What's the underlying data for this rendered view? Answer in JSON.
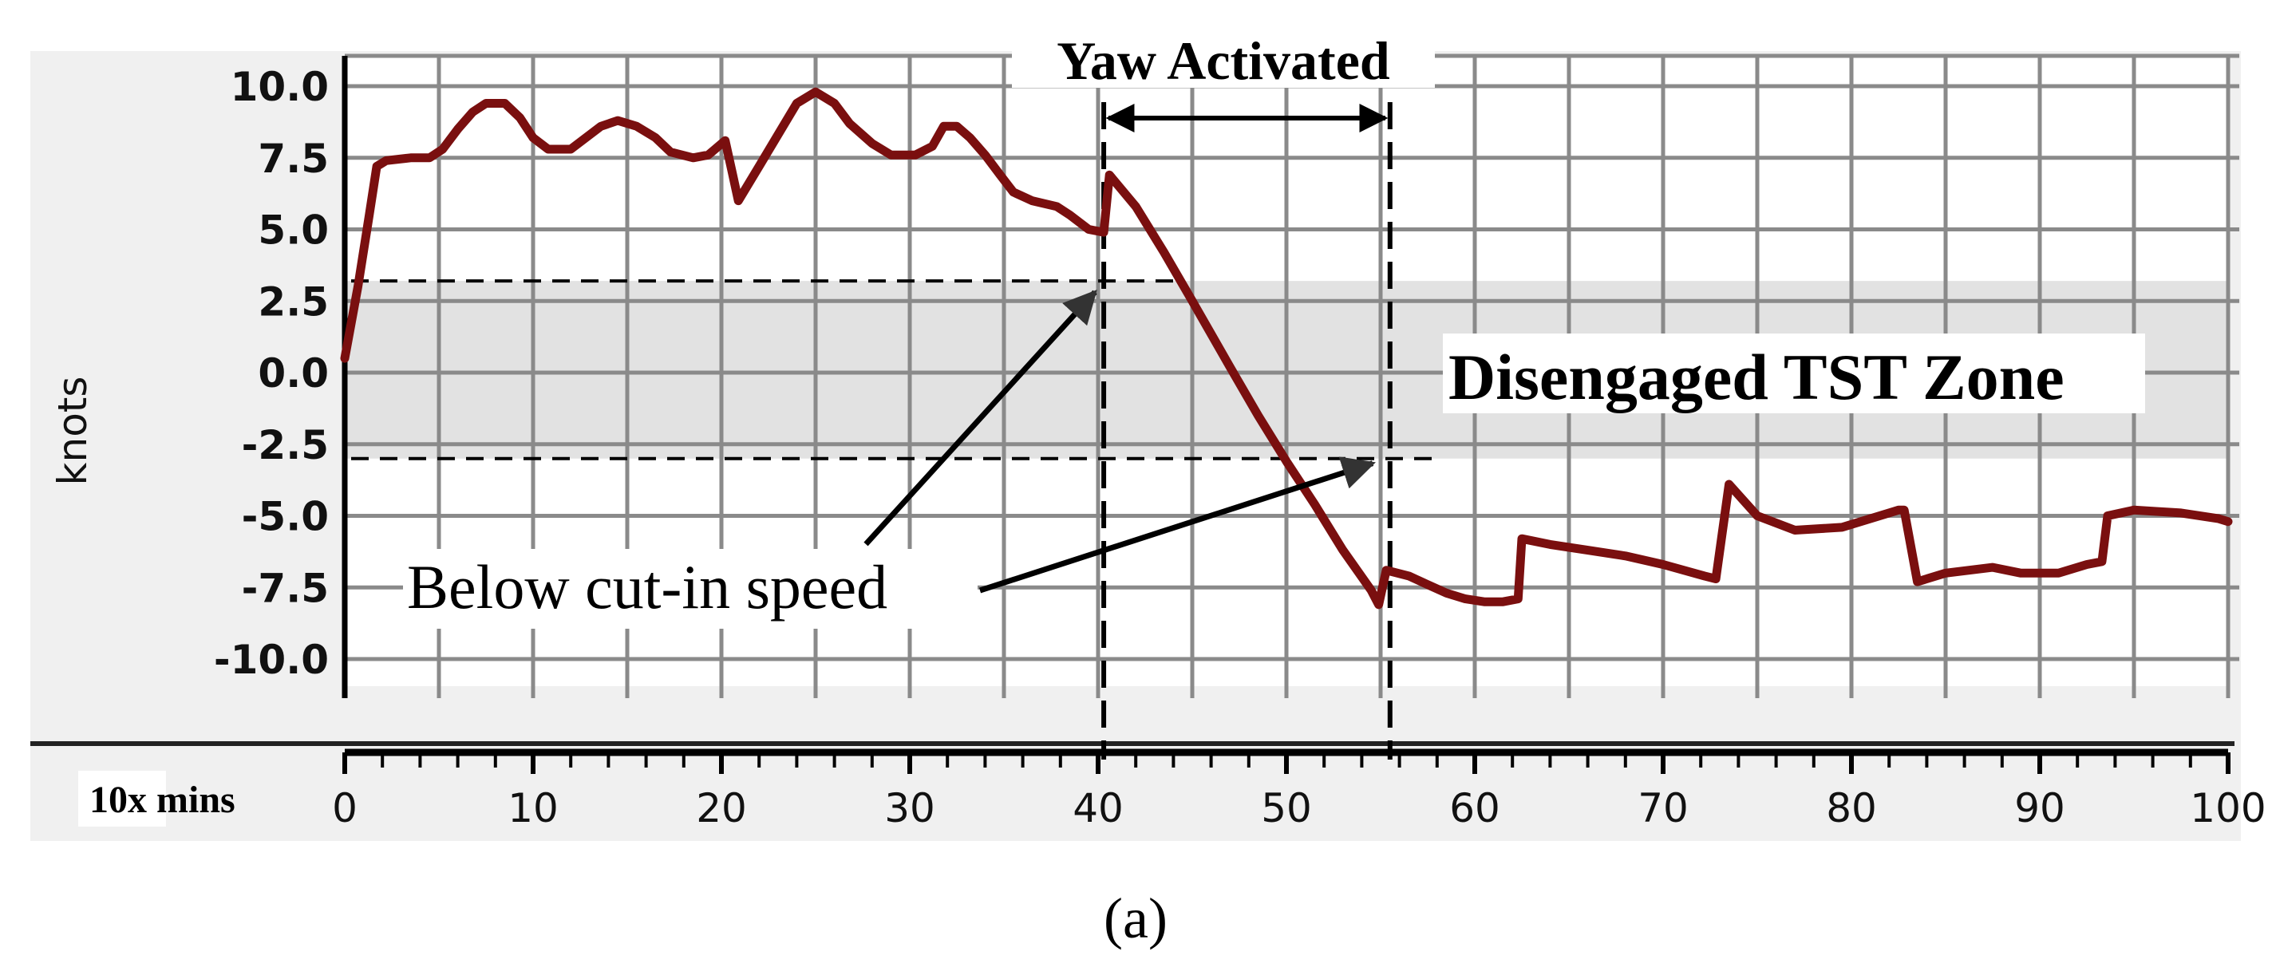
{
  "chart_data": {
    "type": "line",
    "title": "",
    "xlabel": "10x mins",
    "ylabel": "knots",
    "xlim": [
      0,
      100
    ],
    "ylim": [
      -10,
      10
    ],
    "x_ticks": [
      0,
      10,
      20,
      30,
      40,
      50,
      60,
      70,
      80,
      90,
      100
    ],
    "y_ticks": [
      "10.0",
      "7.5",
      "5.0",
      "2.5",
      "0.0",
      "-2.5",
      "-5.0",
      "-7.5",
      "-10.0"
    ],
    "y_tick_values": [
      10,
      7.5,
      5,
      2.5,
      0,
      -2.5,
      -5,
      -7.5,
      -10
    ],
    "grid": true,
    "series": [
      {
        "color": "#7a0f0f",
        "x": [
          0,
          0.7,
          1.3,
          1.7,
          2.2,
          3.5,
          4.5,
          5.2,
          6,
          6.8,
          7.5,
          8.5,
          9.3,
          10,
          10.8,
          12,
          12.8,
          13.6,
          14.5,
          15.5,
          16.5,
          17.3,
          18.5,
          19.3,
          20.2,
          20.6,
          20.9,
          22,
          23,
          24,
          25,
          26,
          26.8,
          28,
          29,
          30.3,
          31.2,
          31.8,
          32.5,
          33.2,
          34,
          34.8,
          35.5,
          36.5,
          37.8,
          38.5,
          39.5,
          40.3,
          40.6,
          42,
          43.5,
          45,
          47,
          48.5,
          50,
          51.5,
          53,
          54.5,
          54.9,
          55.3,
          56.5,
          57.5,
          58.5,
          59.5,
          60.5,
          61.5,
          62.3,
          62.5,
          64,
          66,
          68,
          70,
          72.2,
          72.8,
          73.5,
          75,
          77,
          79.5,
          81.5,
          82.5,
          82.8,
          83.5,
          85,
          87.5,
          89,
          91,
          92.5,
          93.3,
          93.6,
          95,
          97.5,
          99.5,
          100
        ],
        "y": [
          0.5,
          3.0,
          5.5,
          7.2,
          7.4,
          7.5,
          7.5,
          7.8,
          8.5,
          9.1,
          9.4,
          9.4,
          8.9,
          8.2,
          7.8,
          7.8,
          8.2,
          8.6,
          8.8,
          8.6,
          8.2,
          7.7,
          7.5,
          7.6,
          8.1,
          6.9,
          6.0,
          7.2,
          8.3,
          9.4,
          9.8,
          9.4,
          8.7,
          8.0,
          7.6,
          7.6,
          7.9,
          8.6,
          8.6,
          8.2,
          7.6,
          6.9,
          6.3,
          6.0,
          5.8,
          5.5,
          5.0,
          4.9,
          6.9,
          5.8,
          4.2,
          2.5,
          0.2,
          -1.5,
          -3.1,
          -4.6,
          -6.2,
          -7.6,
          -8.1,
          -6.9,
          -7.1,
          -7.4,
          -7.7,
          -7.9,
          -8.0,
          -8.0,
          -7.9,
          -5.8,
          -6.0,
          -6.2,
          -6.4,
          -6.7,
          -7.1,
          -7.2,
          -3.9,
          -5.0,
          -5.5,
          -5.4,
          -5.0,
          -4.8,
          -4.8,
          -7.3,
          -7.0,
          -6.8,
          -7.0,
          -7.0,
          -6.7,
          -6.6,
          -5.0,
          -4.8,
          -4.9,
          -5.1,
          -5.2
        ]
      }
    ],
    "shaded_band": {
      "from": -3,
      "to": 3.2,
      "label": "Disengaged TST Zone"
    },
    "yaw_window": {
      "from": 40.3,
      "to": 55.5,
      "label": "Yaw Activated"
    },
    "cut_in_levels": [
      3.2,
      -3
    ],
    "annotations": [
      {
        "text": "Below cut-in speed",
        "arrows_to": [
          [
            40.0,
            3.2
          ],
          [
            55.0,
            -3.0
          ]
        ]
      }
    ],
    "panel_label": "(a)"
  }
}
